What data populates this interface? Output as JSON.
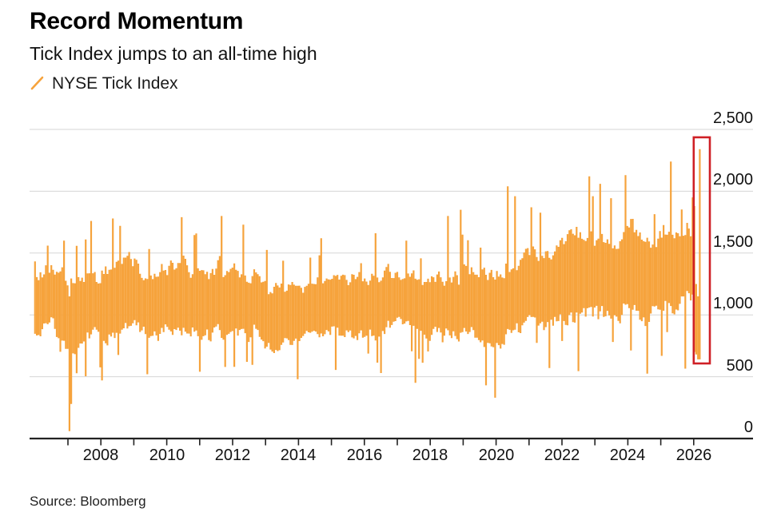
{
  "header": {
    "title": "Record Momentum",
    "subtitle": "Tick Index jumps to an all-time high"
  },
  "legend": {
    "items": [
      {
        "label": "NYSE Tick Index",
        "icon": "line-slash-icon",
        "color": "#F6A33C"
      }
    ]
  },
  "source": {
    "label": "Source: Bloomberg"
  },
  "colors": {
    "series_orange": "#F6A33C",
    "highlight_red": "#CF2026",
    "gridline": "#D6D6D6",
    "axis": "#222222",
    "background": "#FFFFFF"
  },
  "chart_data": {
    "type": "line",
    "subtype": "high-low-range-bars",
    "title": "Record Momentum",
    "subtitle": "Tick Index jumps to an all-time high",
    "series": [
      {
        "name": "NYSE Tick Index",
        "color": "#F6A33C"
      }
    ],
    "x_axis": {
      "range": [
        2006.0,
        2026.5
      ],
      "tick_years": [
        2007,
        2008,
        2009,
        2010,
        2011,
        2012,
        2013,
        2014,
        2015,
        2016,
        2017,
        2018,
        2019,
        2020,
        2021,
        2022,
        2023,
        2024,
        2025,
        2026
      ],
      "label_years": [
        "2008",
        "2010",
        "2012",
        "2014",
        "2016",
        "2018",
        "2020",
        "2022",
        "2024",
        "2026"
      ]
    },
    "y_axis": {
      "range": [
        0,
        2500
      ],
      "ticks": [
        0,
        500,
        1000,
        1500,
        2000,
        2500
      ],
      "tick_labels": [
        "0",
        "500",
        "1,000",
        "1,500",
        "2,000",
        "2,500"
      ],
      "side": "right",
      "grid": true
    },
    "envelope": [
      [
        2006.0,
        1060,
        340
      ],
      [
        2006.6,
        1100,
        390
      ],
      [
        2007.2,
        1000,
        420
      ],
      [
        2008.0,
        1040,
        430
      ],
      [
        2008.7,
        1110,
        420
      ],
      [
        2009.4,
        1050,
        380
      ],
      [
        2010.1,
        1100,
        400
      ],
      [
        2010.7,
        1130,
        430
      ],
      [
        2011.3,
        1080,
        400
      ],
      [
        2011.9,
        1150,
        430
      ],
      [
        2012.6,
        1070,
        380
      ],
      [
        2013.4,
        1010,
        340
      ],
      [
        2014.2,
        1020,
        330
      ],
      [
        2015.0,
        1060,
        340
      ],
      [
        2016.0,
        1080,
        370
      ],
      [
        2017.0,
        1100,
        340
      ],
      [
        2017.8,
        1070,
        340
      ],
      [
        2018.6,
        1130,
        410
      ],
      [
        2019.4,
        1080,
        410
      ],
      [
        2020.1,
        1130,
        480
      ],
      [
        2020.8,
        1220,
        440
      ],
      [
        2021.5,
        1250,
        460
      ],
      [
        2022.2,
        1270,
        470
      ],
      [
        2022.9,
        1320,
        480
      ],
      [
        2023.6,
        1310,
        460
      ],
      [
        2024.3,
        1320,
        480
      ],
      [
        2025.0,
        1290,
        470
      ],
      [
        2025.6,
        1320,
        450
      ],
      [
        2026.0,
        1380,
        460
      ],
      [
        2026.25,
        1450,
        480
      ]
    ],
    "events": [
      {
        "x": 2006.4,
        "hi": 1560
      },
      {
        "x": 2006.9,
        "hi": 1600
      },
      {
        "x": 2007.06,
        "hi": 1150,
        "lo": 60
      },
      {
        "x": 2007.12,
        "lo": 280
      },
      {
        "x": 2007.7,
        "hi": 1760
      },
      {
        "x": 2008.02,
        "lo": 470
      },
      {
        "x": 2008.35,
        "hi": 1780
      },
      {
        "x": 2008.6,
        "hi": 1720
      },
      {
        "x": 2009.4,
        "lo": 520
      },
      {
        "x": 2010.45,
        "hi": 1790
      },
      {
        "x": 2011.0,
        "lo": 540
      },
      {
        "x": 2011.65,
        "hi": 1800
      },
      {
        "x": 2012.3,
        "hi": 1730
      },
      {
        "x": 2012.45,
        "lo": 620
      },
      {
        "x": 2014.0,
        "lo": 480
      },
      {
        "x": 2014.7,
        "hi": 1620
      },
      {
        "x": 2015.15,
        "lo": 555
      },
      {
        "x": 2016.35,
        "hi": 1660
      },
      {
        "x": 2016.5,
        "lo": 530
      },
      {
        "x": 2017.3,
        "hi": 1600
      },
      {
        "x": 2017.55,
        "lo": 450
      },
      {
        "x": 2018.55,
        "hi": 1800
      },
      {
        "x": 2018.9,
        "hi": 1850
      },
      {
        "x": 2019.7,
        "lo": 430
      },
      {
        "x": 2019.95,
        "lo": 330
      },
      {
        "x": 2020.35,
        "hi": 2040
      },
      {
        "x": 2020.6,
        "hi": 1960
      },
      {
        "x": 2021.05,
        "hi": 1870
      },
      {
        "x": 2021.6,
        "lo": 570
      },
      {
        "x": 2022.5,
        "lo": 545
      },
      {
        "x": 2022.85,
        "hi": 2120
      },
      {
        "x": 2023.15,
        "hi": 2060
      },
      {
        "x": 2023.95,
        "hi": 2130
      },
      {
        "x": 2024.6,
        "lo": 525
      },
      {
        "x": 2025.3,
        "hi": 2240
      },
      {
        "x": 2025.75,
        "lo": 565
      },
      {
        "x": 2025.97,
        "hi": 1950
      },
      {
        "x": 2026.02,
        "hi": 1880,
        "lo": 700
      },
      {
        "x": 2026.08,
        "hi": 1250,
        "lo": 680
      },
      {
        "x": 2026.13,
        "hi": 1150,
        "lo": 640
      },
      {
        "x": 2026.185,
        "hi": 2340,
        "lo": 640
      }
    ],
    "highlight_box": {
      "x0": 2026.0,
      "x1": 2026.49,
      "y0": 607,
      "y1": 2436,
      "color": "#CF2026",
      "note": "all-time high spike"
    },
    "record_high_value": 2340
  }
}
